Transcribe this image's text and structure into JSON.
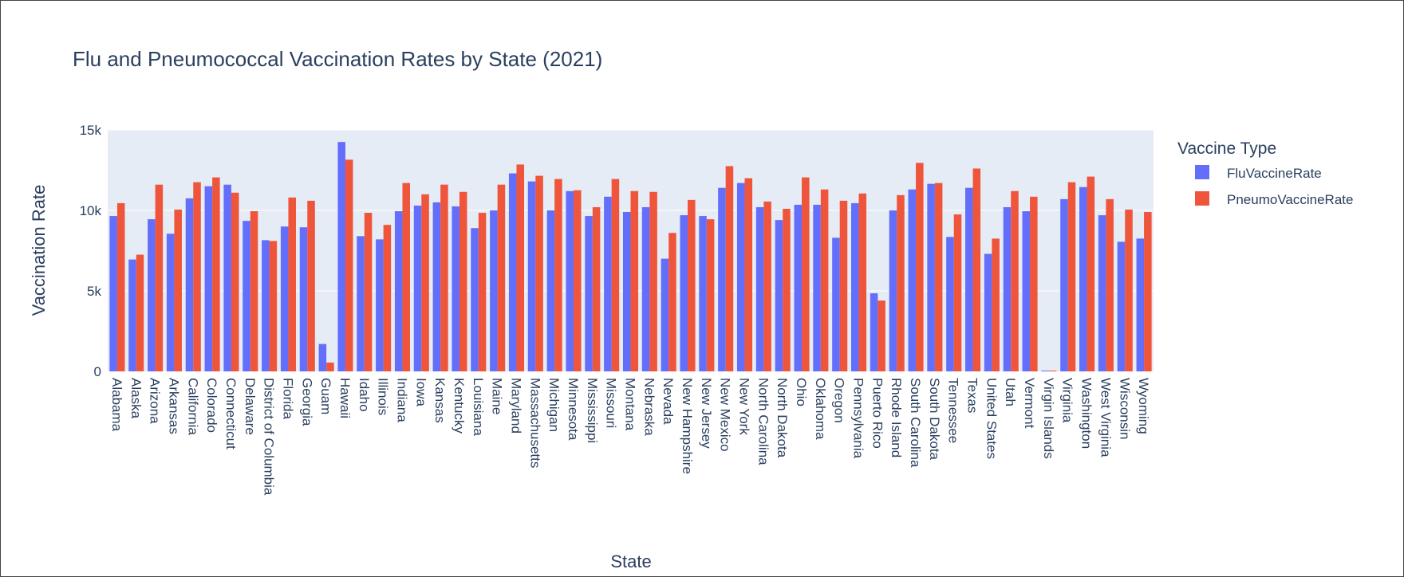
{
  "chart_data": {
    "type": "bar",
    "title": "Flu and Pneumococcal Vaccination Rates by State (2021)",
    "xlabel": "State",
    "ylabel": "Vaccination Rate",
    "ylim": [
      0,
      15000
    ],
    "yticks": [
      0,
      5000,
      10000,
      15000
    ],
    "ytick_labels": [
      "0",
      "5k",
      "10k",
      "15k"
    ],
    "grid": true,
    "legend": {
      "title": "Vaccine Type",
      "position": "right"
    },
    "categories": [
      "Alabama",
      "Alaska",
      "Arizona",
      "Arkansas",
      "California",
      "Colorado",
      "Connecticut",
      "Delaware",
      "District of Columbia",
      "Florida",
      "Georgia",
      "Guam",
      "Hawaii",
      "Idaho",
      "Illinois",
      "Indiana",
      "Iowa",
      "Kansas",
      "Kentucky",
      "Louisiana",
      "Maine",
      "Maryland",
      "Massachusetts",
      "Michigan",
      "Minnesota",
      "Mississippi",
      "Missouri",
      "Montana",
      "Nebraska",
      "Nevada",
      "New Hampshire",
      "New Jersey",
      "New Mexico",
      "New York",
      "North Carolina",
      "North Dakota",
      "Ohio",
      "Oklahoma",
      "Oregon",
      "Pennsylvania",
      "Puerto Rico",
      "Rhode Island",
      "South Carolina",
      "South Dakota",
      "Tennessee",
      "Texas",
      "United States",
      "Utah",
      "Vermont",
      "Virgin Islands",
      "Virginia",
      "Washington",
      "West Virginia",
      "Wisconsin",
      "Wyoming"
    ],
    "series": [
      {
        "name": "FluVaccineRate",
        "color": "#636efa",
        "values": [
          9650,
          6950,
          9450,
          8550,
          10750,
          11500,
          11600,
          9350,
          8150,
          9000,
          8950,
          1700,
          14250,
          8400,
          8200,
          9950,
          10300,
          10500,
          10250,
          8900,
          10000,
          12300,
          11800,
          10000,
          11200,
          9650,
          10850,
          9900,
          10200,
          7000,
          9700,
          9650,
          11400,
          11700,
          10200,
          9400,
          10350,
          10350,
          8300,
          10450,
          4850,
          10000,
          11300,
          11650,
          8350,
          11400,
          7300,
          10200,
          9950,
          50,
          10700,
          11450,
          9700,
          8050,
          8250
        ]
      },
      {
        "name": "PneumoVaccineRate",
        "color": "#ef553b",
        "values": [
          10450,
          7250,
          11600,
          10050,
          11750,
          12050,
          11100,
          9950,
          8100,
          10800,
          10600,
          550,
          13150,
          9850,
          9100,
          11700,
          11000,
          11600,
          11150,
          9850,
          11600,
          12850,
          12150,
          11950,
          11250,
          10200,
          11950,
          11200,
          11150,
          8600,
          10650,
          9450,
          12750,
          12000,
          10550,
          10100,
          12050,
          11300,
          10600,
          11050,
          4400,
          10950,
          12950,
          11700,
          9750,
          12600,
          8250,
          11200,
          10850,
          50,
          11750,
          12100,
          10700,
          10050,
          9900
        ]
      }
    ]
  }
}
